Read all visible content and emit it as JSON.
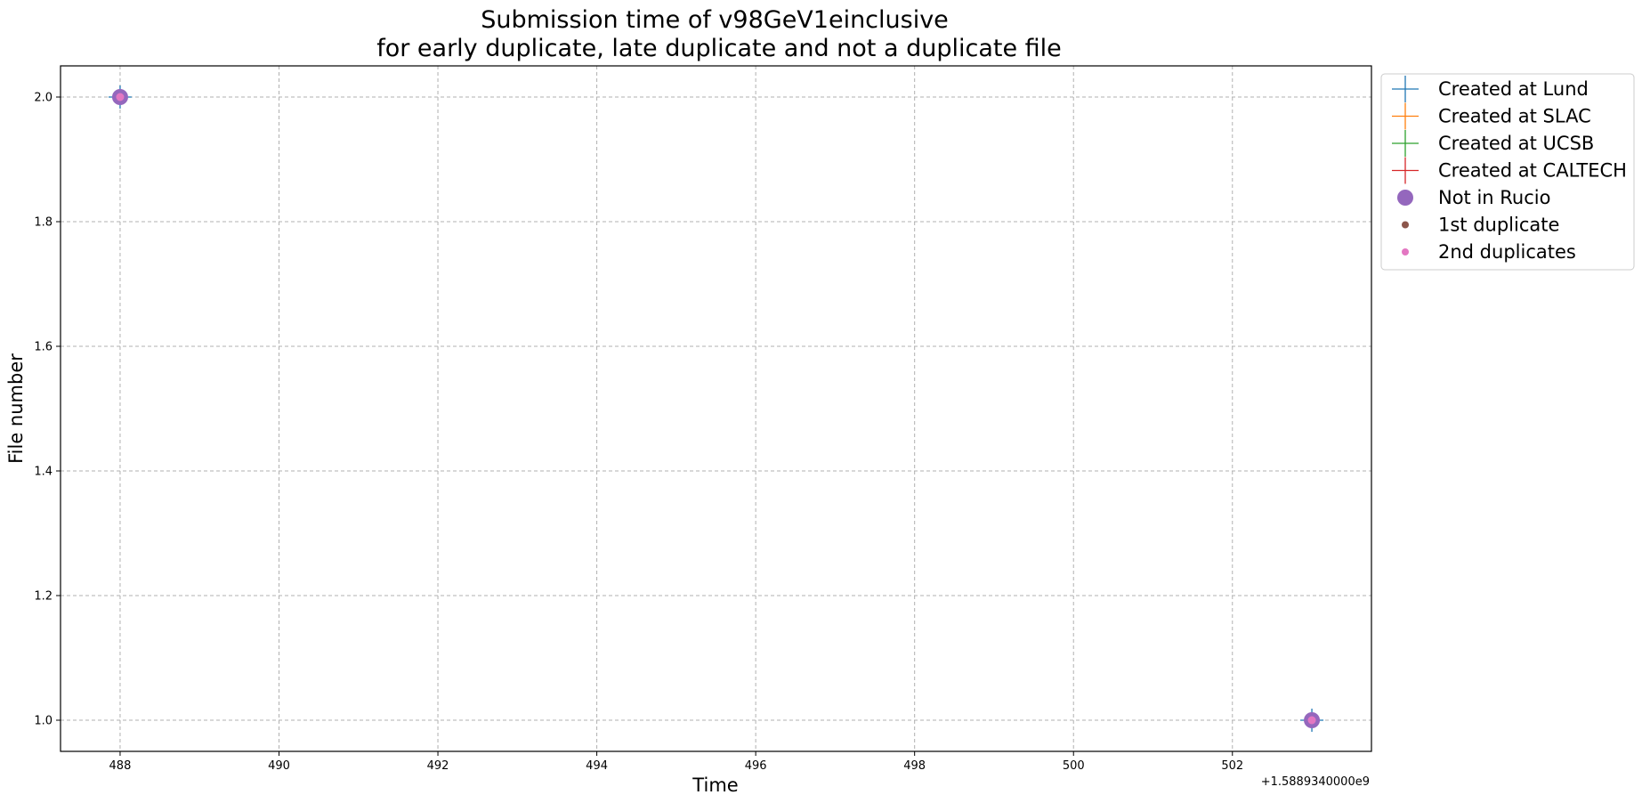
{
  "chart_data": {
    "type": "scatter",
    "title_lines": [
      "Submission time of v98GeV1einclusive",
      "for early duplicate, late duplicate and not a duplicate file"
    ],
    "xlabel": "Time",
    "ylabel": "File number",
    "x_offset_label": "+1.5889340000e9",
    "xlim": [
      487.25,
      503.75
    ],
    "ylim": [
      0.95,
      2.05
    ],
    "x_ticks": [
      488,
      490,
      492,
      494,
      496,
      498,
      500,
      502
    ],
    "x_tick_labels": [
      "488",
      "490",
      "492",
      "494",
      "496",
      "498",
      "500",
      "502"
    ],
    "y_ticks": [
      1.0,
      1.2,
      1.4,
      1.6,
      1.8,
      2.0
    ],
    "y_tick_labels": [
      "1.0",
      "1.2",
      "1.4",
      "1.6",
      "1.8",
      "2.0"
    ],
    "grid": true,
    "legend_position": "outside-upper-right",
    "series": [
      {
        "name": "Created at Lund",
        "marker": "plus",
        "color": "#1f77b4",
        "points": [
          [
            488,
            2.0
          ],
          [
            503,
            1.0
          ]
        ]
      },
      {
        "name": "Created at SLAC",
        "marker": "plus",
        "color": "#ff7f0e",
        "points": []
      },
      {
        "name": "Created at UCSB",
        "marker": "plus",
        "color": "#2ca02c",
        "points": []
      },
      {
        "name": "Created at CALTECH",
        "marker": "plus",
        "color": "#d62728",
        "points": []
      },
      {
        "name": "Not in Rucio",
        "marker": "circle-large",
        "color": "#9467bd",
        "points": [
          [
            488,
            2.0
          ],
          [
            503,
            1.0
          ]
        ]
      },
      {
        "name": "1st duplicate",
        "marker": "circle-small",
        "color": "#8c564b",
        "points": []
      },
      {
        "name": "2nd duplicates",
        "marker": "circle-small",
        "color": "#e377c2",
        "points": [
          [
            488,
            2.0
          ],
          [
            503,
            1.0
          ]
        ]
      }
    ]
  }
}
